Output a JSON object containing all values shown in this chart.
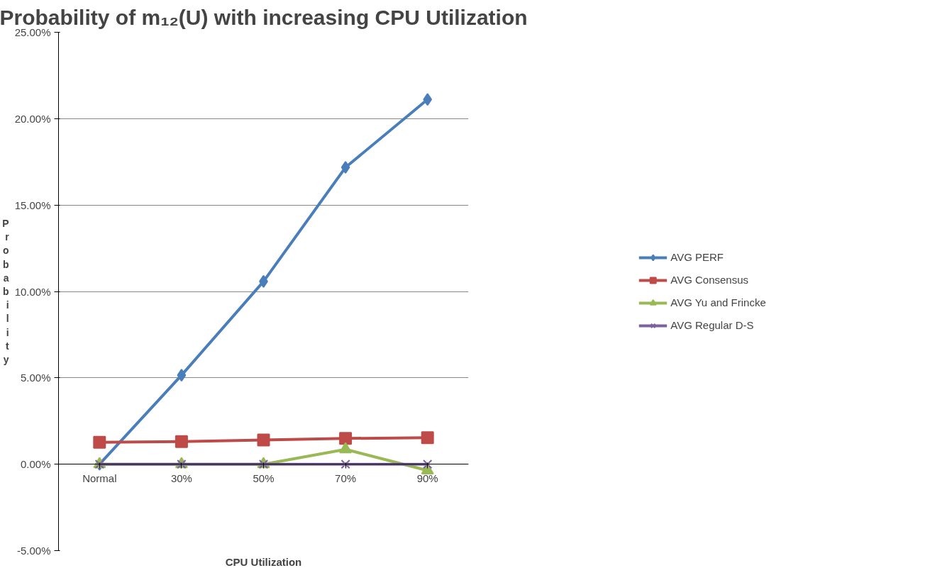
{
  "chart_data": {
    "type": "line",
    "title": "Probability of m₁₂(U) with increasing CPU Utilization",
    "xlabel": "CPU Utilization",
    "ylabel": "Probability",
    "categories": [
      "Normal",
      "30%",
      "50%",
      "70%",
      "90%"
    ],
    "series": [
      {
        "name": "AVG PERF",
        "color": "#4a7ebb",
        "marker": "diamond",
        "values": [
          0.0,
          5.15,
          10.58,
          17.18,
          21.11
        ]
      },
      {
        "name": "AVG Consensus",
        "color": "#be4b48",
        "marker": "square",
        "values": [
          1.27,
          1.31,
          1.4,
          1.49,
          1.54
        ]
      },
      {
        "name": "AVG Yu and Frincke",
        "color": "#98b954",
        "marker": "triangle",
        "values": [
          0.0,
          0.0,
          0.0,
          0.86,
          -0.36
        ]
      },
      {
        "name": "AVG Regular D-S",
        "color": "#7d60a0",
        "marker": "x",
        "values": [
          0.0,
          0.0,
          0.0,
          0.0,
          0.0
        ]
      }
    ],
    "ylim": [
      -5,
      25
    ],
    "yticks": [
      {
        "value": -5,
        "label": "-5.00%"
      },
      {
        "value": 0,
        "label": "0.00%"
      },
      {
        "value": 5,
        "label": "5.00%"
      },
      {
        "value": 10,
        "label": "10.00%"
      },
      {
        "value": 15,
        "label": "15.00%"
      },
      {
        "value": 20,
        "label": "20.00%"
      },
      {
        "value": 25,
        "label": "25.00%"
      }
    ],
    "grid": "y",
    "legend": "right",
    "line_style": "solid"
  }
}
